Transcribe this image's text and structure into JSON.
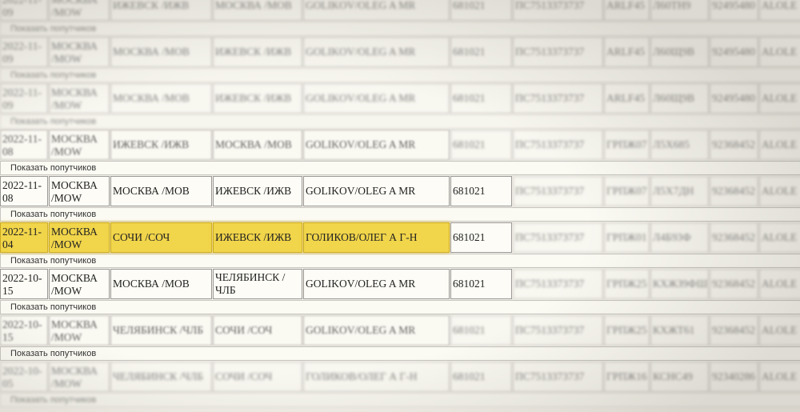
{
  "show_companions_label": "Показать попутчиков",
  "highlight_color": "#f1d54a",
  "rows": [
    {
      "cells": [
        "2022-11-09",
        "МОСКВА /MOW",
        "ИЖЕВСК /ИЖВ",
        "МОСКВА /МОВ",
        "GOLIKOV/OLEG A MR",
        "681021",
        "ПС7513373737",
        "ARLF45",
        "Л60ТН9",
        "92495480",
        "ALOLE"
      ],
      "blurred": true
    },
    {
      "cells": [
        "2022-11-09",
        "МОСКВА /MOW",
        "МОСКВА /МОВ",
        "ИЖЕВСК /ИЖВ",
        "GOLIKOV/OLEG A MR",
        "681021",
        "ПС7513373737",
        "ARLF45",
        "Л60Щ9В",
        "92495480",
        "ALOLE"
      ],
      "blurred": true
    },
    {
      "cells": [
        "2022-11-09",
        "МОСКВА /MOW",
        "МОСКВА /МОВ",
        "ИЖЕВСК /ИЖВ",
        "GOLIKOV/OLEG A MR",
        "681021",
        "ПС7513373737",
        "ARLF45",
        "Л60Щ9В",
        "92495480",
        "ALOLE"
      ],
      "blurred": true
    },
    {
      "cells": [
        "2022-11-08",
        "МОСКВА /MOW",
        "ИЖЕВСК /ИЖВ",
        "МОСКВА /МОВ",
        "GOLIKOV/OLEG A MR",
        "681021",
        "ПС7513373737",
        "ГРПЖ07",
        "Л5Х685",
        "92368452",
        "ALOLE"
      ],
      "blurred": "partial"
    },
    {
      "cells": [
        "2022-11-08",
        "МОСКВА /MOW",
        "МОСКВА /МОВ",
        "ИЖЕВСК /ИЖВ",
        "GOLIKOV/OLEG A MR",
        "681021",
        "ПС7513373737",
        "ГРПЖ07",
        "Л5Х7ДН",
        "92368452",
        "ALOLE"
      ],
      "blurred": false
    },
    {
      "cells": [
        "2022-11-04",
        "МОСКВА /MOW",
        "СОЧИ /СОЧ",
        "ИЖЕВСК /ИЖВ",
        "ГОЛИКОВ/ОЛЕГ А Г-Н",
        "681021",
        "ПС7513373737",
        "ГРПЖ01",
        "Л4Б93Ф",
        "92368452",
        "ALOLE"
      ],
      "blurred": false,
      "highlighted": true
    },
    {
      "cells": [
        "2022-10-15",
        "МОСКВА /MOW",
        "МОСКВА /МОВ",
        "ЧЕЛЯБИНСК / ЧЛБ",
        "GOLIKOV/OLEG A MR",
        "681021",
        "ПС7513373737",
        "ГРПЖ25",
        "КХЖЗ9ФШ",
        "92368452",
        "ALOLE"
      ],
      "blurred": false
    },
    {
      "cells": [
        "2022-10-15",
        "МОСКВА /MOW",
        "ЧЕЛЯБИНСК /ЧЛБ",
        "СОЧИ /СОЧ",
        "GOLIKOV/OLEG A MR",
        "681021",
        "ПС7513373737",
        "ГРПЖ25",
        "КХЖТ61",
        "92368452",
        "ALOLE"
      ],
      "blurred": "partial"
    },
    {
      "cells": [
        "2022-10-05",
        "МОСКВА /MOW",
        "ЧЕЛЯБИНСК /ЧЛБ",
        "СОЧИ /СОЧ",
        "ГОЛИКОВ/ОЛЕГ А Г-Н",
        "681021",
        "ПС7513373737",
        "ГРПЖ16",
        "КСНС49",
        "92340286",
        "ALOLE"
      ],
      "blurred": true
    }
  ]
}
